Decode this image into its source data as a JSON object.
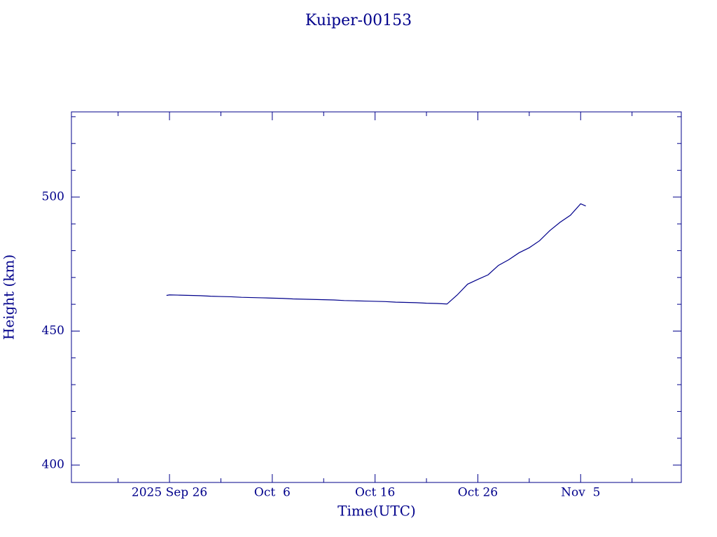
{
  "chart_data": {
    "type": "line",
    "title": "Kuiper-00153",
    "xlabel": "Time(UTC)",
    "ylabel": "Height (km)",
    "color": "#00008b",
    "x": [
      "2025-09-25T17:00",
      "2025-09-26T00:00",
      "2025-09-27T00:00",
      "2025-09-28T00:00",
      "2025-09-29T00:00",
      "2025-09-30T00:00",
      "2025-10-01T00:00",
      "2025-10-02T00:00",
      "2025-10-03T00:00",
      "2025-10-04T00:00",
      "2025-10-05T00:00",
      "2025-10-06T00:00",
      "2025-10-07T00:00",
      "2025-10-08T00:00",
      "2025-10-09T00:00",
      "2025-10-10T00:00",
      "2025-10-11T00:00",
      "2025-10-12T00:00",
      "2025-10-13T00:00",
      "2025-10-14T00:00",
      "2025-10-15T00:00",
      "2025-10-16T00:00",
      "2025-10-17T00:00",
      "2025-10-18T00:00",
      "2025-10-19T00:00",
      "2025-10-20T00:00",
      "2025-10-21T00:00",
      "2025-10-22T00:00",
      "2025-10-23T00:00",
      "2025-10-24T00:00",
      "2025-10-25T00:00",
      "2025-10-26T00:00",
      "2025-10-27T00:00",
      "2025-10-28T00:00",
      "2025-10-29T00:00",
      "2025-10-30T00:00",
      "2025-10-31T00:00",
      "2025-11-01T00:00",
      "2025-11-02T00:00",
      "2025-11-03T00:00",
      "2025-11-04T00:00",
      "2025-11-05T00:00",
      "2025-11-05T12:00"
    ],
    "values": [
      463.3,
      463.5,
      463.4,
      463.3,
      463.2,
      463.0,
      462.9,
      462.8,
      462.6,
      462.5,
      462.4,
      462.3,
      462.2,
      462.0,
      461.9,
      461.8,
      461.7,
      461.6,
      461.4,
      461.3,
      461.2,
      461.1,
      461.0,
      460.8,
      460.7,
      460.6,
      460.4,
      460.3,
      460.1,
      463.5,
      467.5,
      469.3,
      471.0,
      474.5,
      476.6,
      479.2,
      481.1,
      483.7,
      487.5,
      490.6,
      493.2,
      497.5,
      496.7
    ],
    "xlim": [
      "2025-09-16T11:00",
      "2025-11-14T19:00"
    ],
    "xticks": [
      {
        "value": "2025-09-26T00:00",
        "label": "2025 Sep 26"
      },
      {
        "value": "2025-10-06T00:00",
        "label": "Oct  6"
      },
      {
        "value": "2025-10-16T00:00",
        "label": "Oct 16"
      },
      {
        "value": "2025-10-26T00:00",
        "label": "Oct 26"
      },
      {
        "value": "2025-11-05T00:00",
        "label": "Nov  5"
      }
    ],
    "xminorticks": [
      "2025-09-21T00:00",
      "2025-10-01T00:00",
      "2025-10-11T00:00",
      "2025-10-21T00:00",
      "2025-10-31T00:00",
      "2025-11-10T00:00"
    ],
    "ylim": [
      393.5,
      531.8
    ],
    "yticks": [
      400,
      450,
      500
    ],
    "yminorticks": [
      410,
      420,
      430,
      440,
      460,
      470,
      480,
      490,
      510,
      520,
      530
    ]
  }
}
